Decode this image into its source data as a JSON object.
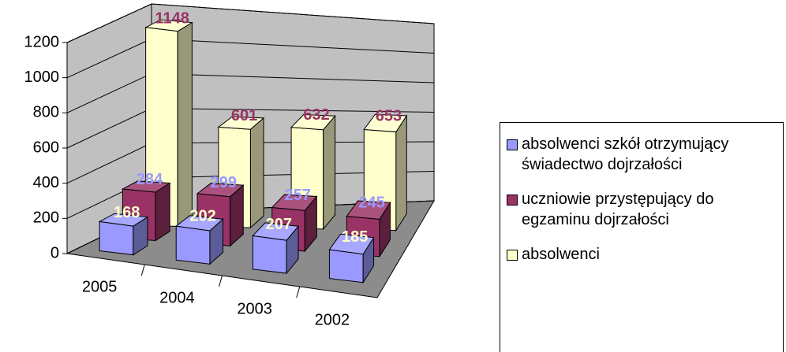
{
  "chart_data": {
    "type": "bar3d",
    "categories": [
      "2005",
      "2004",
      "2003",
      "2002"
    ],
    "series": [
      {
        "name": "absolwenci szkół otrzymujący świadectwo dojrzałości",
        "color": "#9999ff",
        "label_color": "#ffffcc",
        "values": [
          168,
          202,
          207,
          185
        ]
      },
      {
        "name": "uczniowie przystępujący do egzaminu dojrzałości",
        "color": "#993366",
        "label_color": "#9999ff",
        "values": [
          284,
          299,
          257,
          245
        ]
      },
      {
        "name": "absolwenci",
        "color": "#ffffcc",
        "label_color": "#993366",
        "values": [
          1148,
          601,
          632,
          653
        ]
      }
    ],
    "ylim": [
      0,
      1200
    ],
    "yticks": [
      0,
      200,
      400,
      600,
      800,
      1000,
      1200
    ],
    "grid": true,
    "legend": "right"
  }
}
